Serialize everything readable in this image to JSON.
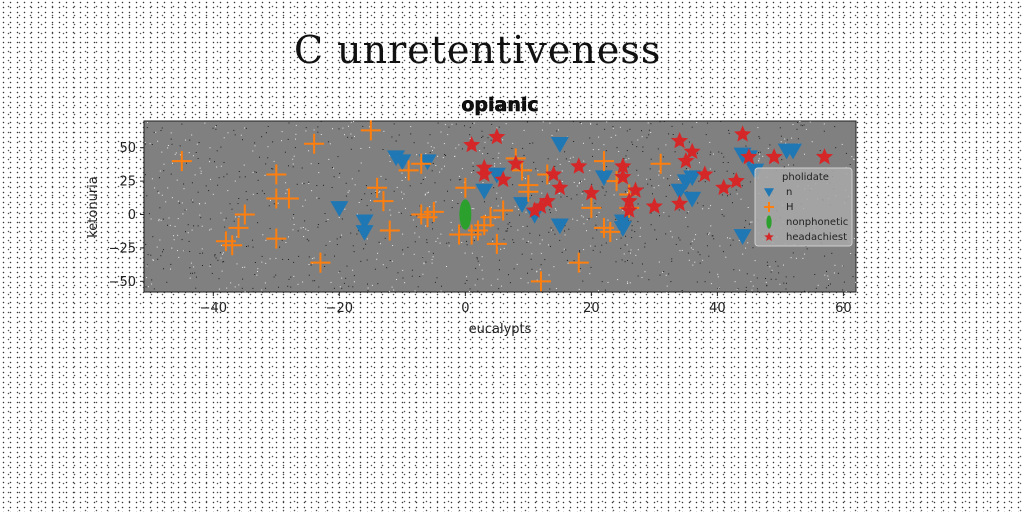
{
  "figure_title": "C unretentiveness",
  "chart_data": {
    "type": "scatter",
    "title": "opianic",
    "xlabel": "eucalypts",
    "ylabel": "ketonuria",
    "xlim": [
      -51,
      62
    ],
    "ylim": [
      -58,
      70
    ],
    "xticks": [
      -40,
      -20,
      0,
      20,
      40,
      60
    ],
    "xtick_labels": [
      "−40",
      "−20",
      "0",
      "20",
      "40",
      "60"
    ],
    "yticks": [
      -50,
      -25,
      0,
      25,
      50
    ],
    "ytick_labels": [
      "−50",
      "−25",
      "0",
      "25",
      "50"
    ],
    "grid": false,
    "background": "#808080",
    "legend": {
      "title": "pholidate",
      "position": "right"
    },
    "series": [
      {
        "name": "n",
        "color": "#1f77b4",
        "marker": "triangle-down",
        "points": [
          [
            -20,
            5
          ],
          [
            -16,
            -5
          ],
          [
            -16,
            -13
          ],
          [
            -11,
            43
          ],
          [
            -10,
            40
          ],
          [
            -6,
            40
          ],
          [
            3,
            18
          ],
          [
            5,
            30
          ],
          [
            9,
            8
          ],
          [
            11,
            0
          ],
          [
            15,
            53
          ],
          [
            15,
            -8
          ],
          [
            22,
            28
          ],
          [
            25,
            -10
          ],
          [
            25,
            -5
          ],
          [
            34,
            18
          ],
          [
            35,
            25
          ],
          [
            36,
            28
          ],
          [
            36,
            12
          ],
          [
            44,
            45
          ],
          [
            44,
            -16
          ],
          [
            45,
            43
          ],
          [
            46,
            33
          ],
          [
            51,
            48
          ],
          [
            52,
            48
          ]
        ]
      },
      {
        "name": "H",
        "color": "#ff7f0e",
        "marker": "plus",
        "points": [
          [
            -45,
            40
          ],
          [
            -38,
            -20
          ],
          [
            -37,
            -23
          ],
          [
            -36,
            -10
          ],
          [
            -35,
            0
          ],
          [
            -30,
            30
          ],
          [
            -30,
            12
          ],
          [
            -30,
            -18
          ],
          [
            -28,
            12
          ],
          [
            -24,
            53
          ],
          [
            -23,
            -36
          ],
          [
            -15,
            63
          ],
          [
            -14,
            20
          ],
          [
            -13,
            10
          ],
          [
            -12,
            -12
          ],
          [
            -9,
            33
          ],
          [
            -7,
            38
          ],
          [
            -7,
            0
          ],
          [
            -6,
            -2
          ],
          [
            -5,
            2
          ],
          [
            -1,
            -15
          ],
          [
            0,
            20
          ],
          [
            1,
            -15
          ],
          [
            2,
            -12
          ],
          [
            3,
            -8
          ],
          [
            4,
            -2
          ],
          [
            5,
            -22
          ],
          [
            6,
            3
          ],
          [
            8,
            42
          ],
          [
            9,
            33
          ],
          [
            10,
            17
          ],
          [
            10,
            22
          ],
          [
            12,
            -50
          ],
          [
            13,
            30
          ],
          [
            18,
            -36
          ],
          [
            20,
            5
          ],
          [
            22,
            40
          ],
          [
            22,
            -10
          ],
          [
            23,
            -13
          ],
          [
            24,
            25
          ],
          [
            26,
            15
          ],
          [
            26,
            5
          ],
          [
            31,
            38
          ]
        ]
      },
      {
        "name": "nonphonetic",
        "color": "#2ca02c",
        "marker": "ellipse",
        "points": [
          [
            0,
            0
          ]
        ]
      },
      {
        "name": "headachiest",
        "color": "#d62728",
        "marker": "star",
        "points": [
          [
            1,
            52
          ],
          [
            3,
            35
          ],
          [
            3,
            30
          ],
          [
            5,
            58
          ],
          [
            6,
            26
          ],
          [
            8,
            38
          ],
          [
            11,
            3
          ],
          [
            12,
            6
          ],
          [
            13,
            10
          ],
          [
            14,
            30
          ],
          [
            15,
            20
          ],
          [
            18,
            36
          ],
          [
            20,
            16
          ],
          [
            25,
            36
          ],
          [
            25,
            28
          ],
          [
            26,
            3
          ],
          [
            26,
            10
          ],
          [
            27,
            18
          ],
          [
            30,
            6
          ],
          [
            34,
            55
          ],
          [
            34,
            8
          ],
          [
            35,
            40
          ],
          [
            36,
            47
          ],
          [
            38,
            30
          ],
          [
            41,
            20
          ],
          [
            43,
            25
          ],
          [
            44,
            60
          ],
          [
            45,
            43
          ],
          [
            49,
            43
          ],
          [
            57,
            43
          ]
        ]
      }
    ]
  }
}
